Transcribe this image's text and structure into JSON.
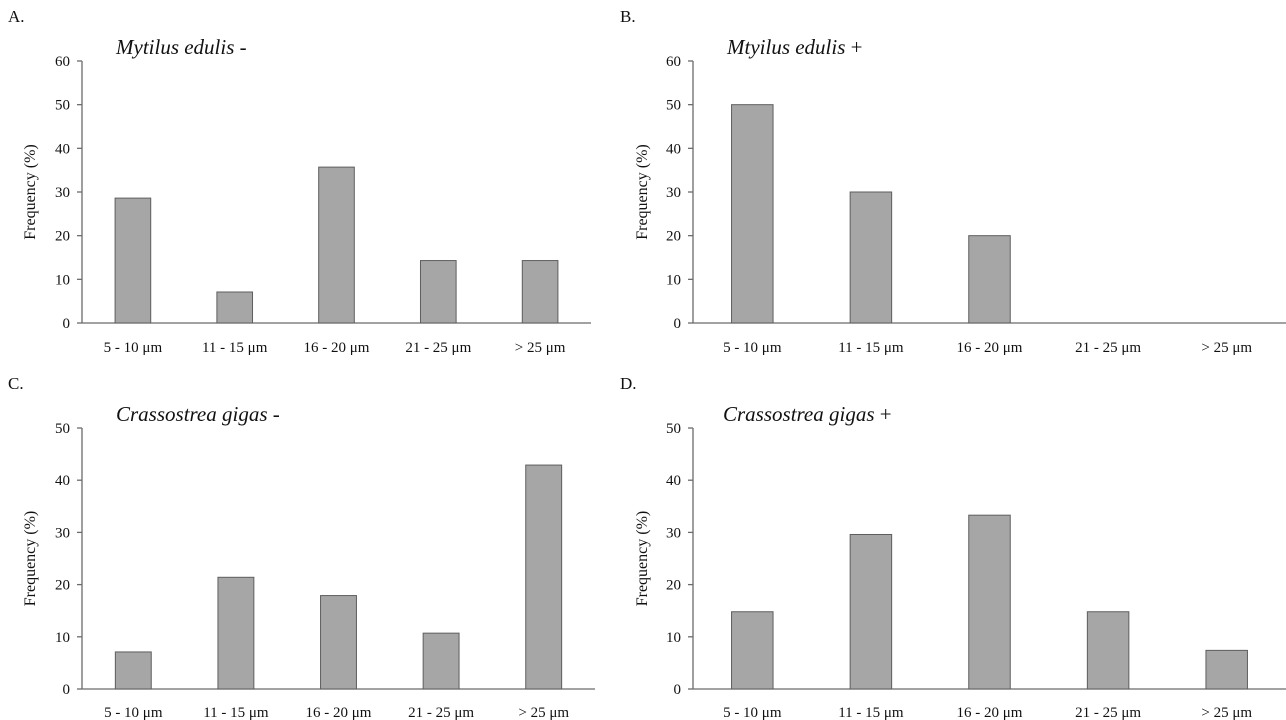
{
  "chart_data": [
    {
      "type": "bar",
      "panel": "A.",
      "title": "Mytilus edulis",
      "title_suffix": " -",
      "ylabel": "Frequency (%)",
      "xlabel": "",
      "categories": [
        "5 - 10 μm",
        "11 - 15 μm",
        "16 - 20 μm",
        "21 - 25 μm",
        "> 25 μm"
      ],
      "values": [
        28.6,
        7.1,
        35.7,
        14.3,
        14.3
      ],
      "ylim": [
        0,
        60
      ],
      "yticks": [
        0,
        10,
        20,
        30,
        40,
        50,
        60
      ],
      "grid": false,
      "bar_color": "#a6a6a6"
    },
    {
      "type": "bar",
      "panel": "B.",
      "title": "Mtyilus edulis",
      "title_suffix": " +",
      "ylabel": "Frequency (%)",
      "xlabel": "",
      "categories": [
        "5 - 10 μm",
        "11 - 15 μm",
        "16 - 20 μm",
        "21 - 25 μm",
        "> 25 μm"
      ],
      "values": [
        50,
        30,
        20,
        0,
        0
      ],
      "ylim": [
        0,
        60
      ],
      "yticks": [
        0,
        10,
        20,
        30,
        40,
        50,
        60
      ],
      "grid": false,
      "bar_color": "#a6a6a6"
    },
    {
      "type": "bar",
      "panel": "C.",
      "title": "Crassostrea gigas",
      "title_suffix": " -",
      "ylabel": "Frequency (%)",
      "xlabel": "",
      "categories": [
        "5 - 10 μm",
        "11 - 15 μm",
        "16 - 20 μm",
        "21 - 25 μm",
        "> 25 μm"
      ],
      "values": [
        7.1,
        21.4,
        17.9,
        10.7,
        42.9
      ],
      "ylim": [
        0,
        50
      ],
      "yticks": [
        0,
        10,
        20,
        30,
        40,
        50
      ],
      "grid": false,
      "bar_color": "#a6a6a6"
    },
    {
      "type": "bar",
      "panel": "D.",
      "title": "Crassostrea gigas",
      "title_suffix": " +",
      "ylabel": "Frequency (%)",
      "xlabel": "",
      "categories": [
        "5 - 10 μm",
        "11 - 15 μm",
        "16 - 20 μm",
        "21 - 25 μm",
        "> 25 μm"
      ],
      "values": [
        14.8,
        29.6,
        33.3,
        14.8,
        7.4
      ],
      "ylim": [
        0,
        50
      ],
      "yticks": [
        0,
        10,
        20,
        30,
        40,
        50
      ],
      "grid": false,
      "bar_color": "#a6a6a6"
    }
  ]
}
